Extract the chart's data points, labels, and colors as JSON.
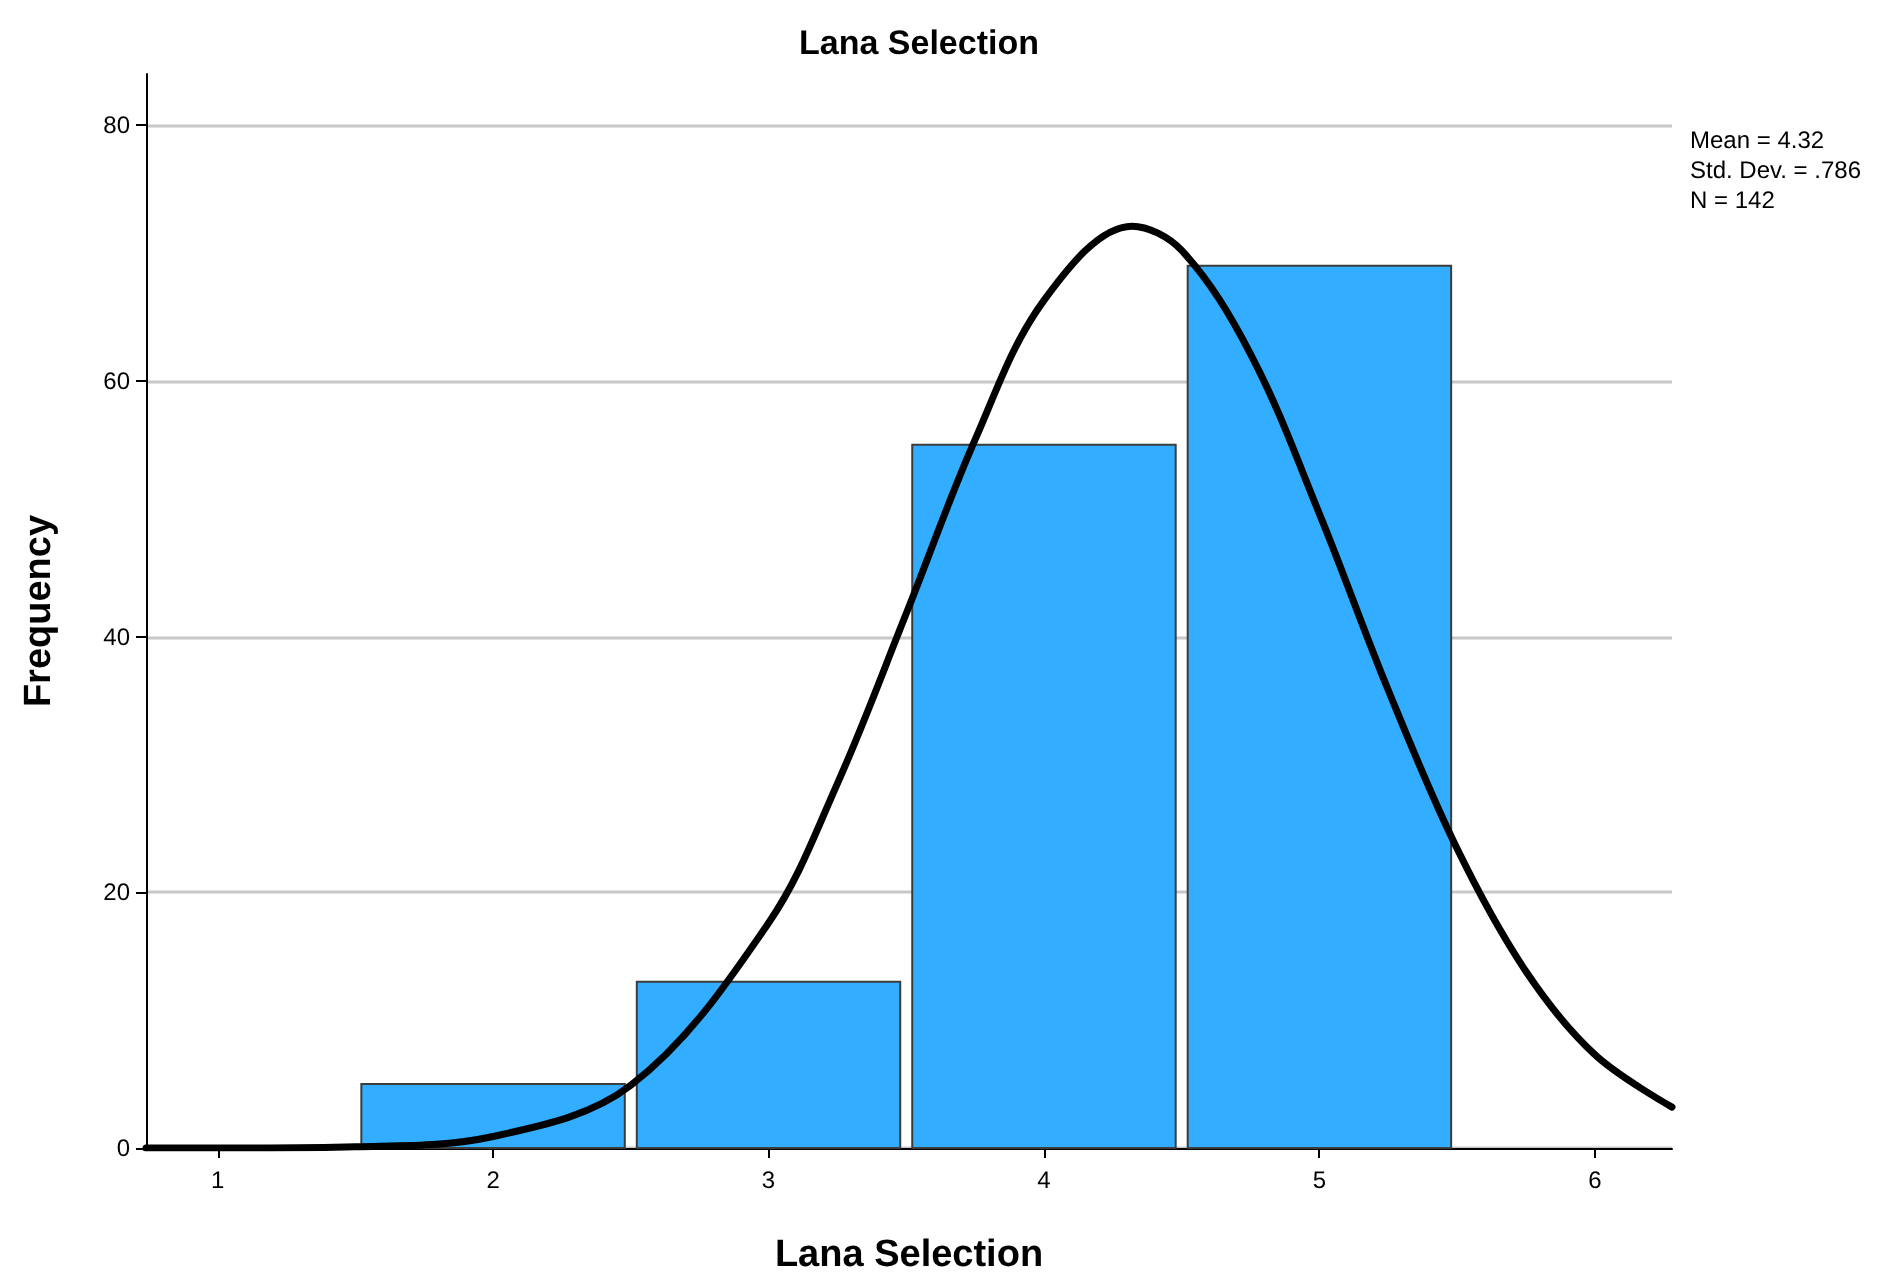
{
  "chart_data": {
    "type": "histogram",
    "title": "Lana Selection",
    "xlabel": "Lana Selection",
    "ylabel": "Frequency",
    "annotations": [
      "Mean = 4.32",
      "Std. Dev. = .786",
      "N = 142"
    ],
    "bins": [
      1.5,
      2.5,
      3.5,
      4.5,
      5.5
    ],
    "values": [
      5,
      13,
      55,
      69
    ],
    "color": "#33adff",
    "series": [
      {
        "type": "line",
        "color": "#000000",
        "x": [
          0.74,
          1,
          1.5,
          2,
          2.5,
          3,
          3.25,
          3.5,
          3.75,
          4,
          4.32,
          4.5,
          4.75,
          5,
          5.25,
          5.5,
          5.75,
          6,
          6.28
        ],
        "values": [
          0,
          0,
          0.1,
          0.9,
          4.9,
          17.6,
          28.5,
          41.8,
          55.4,
          66.3,
          72.1,
          70.2,
          62.1,
          49.6,
          35.8,
          23.4,
          13.8,
          7.3,
          3.2
        ]
      }
    ],
    "xlim": [
      0.74,
      6.28
    ],
    "xticks": [
      1,
      2,
      3,
      4,
      5,
      6
    ],
    "ylim": [
      0,
      84
    ],
    "yticks": [
      0,
      20,
      40,
      60,
      80
    ],
    "grid": "y",
    "marker": "none",
    "line_style": "solid"
  }
}
